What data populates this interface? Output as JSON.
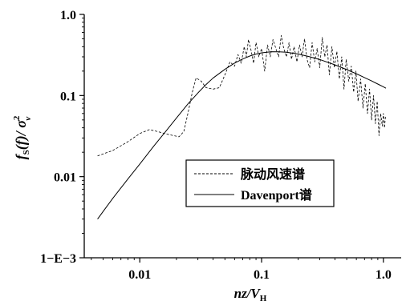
{
  "chart_data": {
    "type": "line",
    "x_scale": "log",
    "y_scale": "log",
    "xlim": [
      0.0035,
      1.4
    ],
    "ylim": [
      0.001,
      1.0
    ],
    "grid": false,
    "legend_position": "lower-right",
    "xlabel": "nz/V",
    "xlabel_sub": "H",
    "ylabel_parts": {
      "f": "f",
      "sub1": "S",
      "body": "(f)/ σ",
      "sup": "2",
      "sub2": "v"
    },
    "x_ticks": [
      {
        "value": 0.01,
        "label": "0.01"
      },
      {
        "value": 0.1,
        "label": "0.1"
      },
      {
        "value": 1.0,
        "label": "1.0"
      }
    ],
    "y_ticks": [
      {
        "value": 1.0,
        "label": "1.0"
      },
      {
        "value": 0.1,
        "label": "0.1"
      },
      {
        "value": 0.01,
        "label": "0.01"
      },
      {
        "value": 0.001,
        "label": "1−E−3"
      }
    ],
    "series": [
      {
        "name": "脉动风速谱",
        "style": "dashed",
        "points": [
          [
            0.0045,
            0.018
          ],
          [
            0.006,
            0.021
          ],
          [
            0.008,
            0.027
          ],
          [
            0.01,
            0.034
          ],
          [
            0.012,
            0.038
          ],
          [
            0.014,
            0.036
          ],
          [
            0.016,
            0.034
          ],
          [
            0.019,
            0.032
          ],
          [
            0.021,
            0.031
          ],
          [
            0.023,
            0.036
          ],
          [
            0.025,
            0.063
          ],
          [
            0.027,
            0.11
          ],
          [
            0.029,
            0.165
          ],
          [
            0.032,
            0.15
          ],
          [
            0.035,
            0.125
          ],
          [
            0.04,
            0.12
          ],
          [
            0.045,
            0.125
          ],
          [
            0.05,
            0.18
          ],
          [
            0.055,
            0.26
          ],
          [
            0.06,
            0.23
          ],
          [
            0.064,
            0.32
          ],
          [
            0.068,
            0.25
          ],
          [
            0.072,
            0.4
          ],
          [
            0.075,
            0.3
          ],
          [
            0.078,
            0.49
          ],
          [
            0.082,
            0.36
          ],
          [
            0.086,
            0.25
          ],
          [
            0.09,
            0.45
          ],
          [
            0.095,
            0.3
          ],
          [
            0.1,
            0.38
          ],
          [
            0.106,
            0.2
          ],
          [
            0.112,
            0.42
          ],
          [
            0.118,
            0.3
          ],
          [
            0.124,
            0.49
          ],
          [
            0.131,
            0.38
          ],
          [
            0.138,
            0.3
          ],
          [
            0.145,
            0.55
          ],
          [
            0.152,
            0.38
          ],
          [
            0.16,
            0.3
          ],
          [
            0.168,
            0.45
          ],
          [
            0.176,
            0.28
          ],
          [
            0.185,
            0.4
          ],
          [
            0.195,
            0.26
          ],
          [
            0.205,
            0.42
          ],
          [
            0.215,
            0.3
          ],
          [
            0.225,
            0.5
          ],
          [
            0.236,
            0.28
          ],
          [
            0.248,
            0.22
          ],
          [
            0.26,
            0.45
          ],
          [
            0.273,
            0.26
          ],
          [
            0.286,
            0.38
          ],
          [
            0.3,
            0.22
          ],
          [
            0.315,
            0.52
          ],
          [
            0.33,
            0.3
          ],
          [
            0.345,
            0.42
          ],
          [
            0.36,
            0.18
          ],
          [
            0.378,
            0.4
          ],
          [
            0.396,
            0.22
          ],
          [
            0.415,
            0.35
          ],
          [
            0.435,
            0.16
          ],
          [
            0.455,
            0.3
          ],
          [
            0.475,
            0.12
          ],
          [
            0.495,
            0.28
          ],
          [
            0.52,
            0.15
          ],
          [
            0.545,
            0.23
          ],
          [
            0.57,
            0.11
          ],
          [
            0.595,
            0.2
          ],
          [
            0.62,
            0.085
          ],
          [
            0.65,
            0.16
          ],
          [
            0.68,
            0.07
          ],
          [
            0.71,
            0.14
          ],
          [
            0.74,
            0.06
          ],
          [
            0.77,
            0.12
          ],
          [
            0.8,
            0.05
          ],
          [
            0.83,
            0.1
          ],
          [
            0.86,
            0.045
          ],
          [
            0.89,
            0.085
          ],
          [
            0.92,
            0.032
          ],
          [
            0.95,
            0.06
          ],
          [
            0.98,
            0.042
          ],
          [
            1.0,
            0.06
          ],
          [
            1.02,
            0.04
          ],
          [
            1.04,
            0.055
          ]
        ]
      },
      {
        "name": "Davenport谱",
        "style": "solid",
        "points": [
          [
            0.0045,
            0.003
          ],
          [
            0.006,
            0.0054
          ],
          [
            0.008,
            0.0094
          ],
          [
            0.01,
            0.0143
          ],
          [
            0.013,
            0.0237
          ],
          [
            0.016,
            0.0348
          ],
          [
            0.02,
            0.0528
          ],
          [
            0.025,
            0.0797
          ],
          [
            0.03,
            0.1075
          ],
          [
            0.035,
            0.1367
          ],
          [
            0.04,
            0.1645
          ],
          [
            0.05,
            0.2105
          ],
          [
            0.06,
            0.251
          ],
          [
            0.07,
            0.2822
          ],
          [
            0.08,
            0.3069
          ],
          [
            0.09,
            0.3246
          ],
          [
            0.1,
            0.3363
          ],
          [
            0.12,
            0.3462
          ],
          [
            0.14,
            0.3461
          ],
          [
            0.16,
            0.342
          ],
          [
            0.2,
            0.325
          ],
          [
            0.25,
            0.3
          ],
          [
            0.3,
            0.278
          ],
          [
            0.4,
            0.239
          ],
          [
            0.5,
            0.2085
          ],
          [
            0.6,
            0.1855
          ],
          [
            0.7,
            0.1665
          ],
          [
            0.8,
            0.1515
          ],
          [
            0.9,
            0.1385
          ],
          [
            1.0,
            0.128
          ],
          [
            1.05,
            0.123
          ]
        ]
      }
    ]
  }
}
